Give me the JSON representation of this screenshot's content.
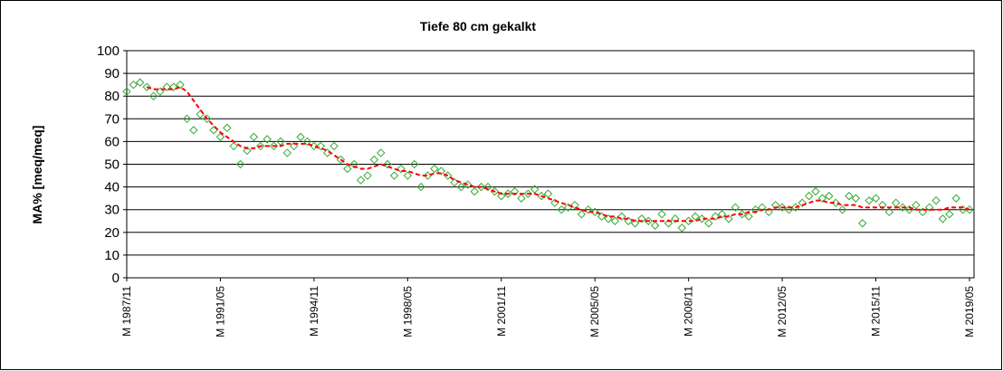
{
  "chart_data": {
    "type": "scatter-line",
    "title": "Tiefe   80 cm     gekalkt",
    "y_label": "MA% [meq/meq]",
    "categories": [
      "M 1987/11",
      null,
      null,
      null,
      null,
      null,
      null,
      null,
      null,
      null,
      null,
      null,
      null,
      null,
      "M 1991/05",
      null,
      null,
      null,
      null,
      null,
      null,
      null,
      null,
      null,
      null,
      null,
      null,
      null,
      "M 1994/11",
      null,
      null,
      null,
      null,
      null,
      null,
      null,
      null,
      null,
      null,
      null,
      null,
      null,
      "M 1998/05",
      null,
      null,
      null,
      null,
      null,
      null,
      null,
      null,
      null,
      null,
      null,
      null,
      null,
      "M 2001/11",
      null,
      null,
      null,
      null,
      null,
      null,
      null,
      null,
      null,
      null,
      null,
      null,
      null,
      "M 2005/05",
      null,
      null,
      null,
      null,
      null,
      null,
      null,
      null,
      null,
      null,
      null,
      null,
      null,
      "M 2008/11",
      null,
      null,
      null,
      null,
      null,
      null,
      null,
      null,
      null,
      null,
      null,
      null,
      null,
      "M 2012/05",
      null,
      null,
      null,
      null,
      null,
      null,
      null,
      null,
      null,
      null,
      null,
      null,
      null,
      "M 2015/11",
      null,
      null,
      null,
      null,
      null,
      null,
      null,
      null,
      null,
      null,
      null,
      null,
      null,
      "M 2019/05"
    ],
    "series": [
      {
        "kind": "points",
        "color": "#33aa33",
        "values": [
          82,
          85,
          86,
          84,
          80,
          82,
          84,
          84,
          85,
          70,
          65,
          72,
          70,
          65,
          62,
          66,
          58,
          50,
          56,
          62,
          58,
          61,
          58,
          60,
          55,
          58,
          62,
          60,
          58,
          58,
          55,
          58,
          52,
          48,
          50,
          43,
          45,
          52,
          55,
          50,
          45,
          48,
          45,
          50,
          40,
          45,
          48,
          47,
          45,
          42,
          40,
          41,
          38,
          40,
          40,
          38,
          36,
          37,
          38,
          35,
          37,
          39,
          36,
          37,
          33,
          30,
          31,
          32,
          28,
          30,
          29,
          27,
          26,
          25,
          27,
          25,
          24,
          26,
          25,
          23,
          28,
          24,
          26,
          22,
          25,
          27,
          26,
          24,
          27,
          28,
          26,
          31,
          28,
          27,
          30,
          31,
          29,
          32,
          31,
          30,
          31,
          33,
          36,
          38,
          35,
          36,
          33,
          30,
          36,
          35,
          24,
          34,
          35,
          32,
          29,
          33,
          31,
          30,
          32,
          29,
          31,
          34,
          26,
          28,
          35,
          30,
          30
        ]
      },
      {
        "kind": "line",
        "color": "#ff0000",
        "values": [
          null,
          null,
          null,
          84,
          83,
          83,
          83,
          83,
          84,
          82,
          78,
          74,
          70,
          67,
          64,
          62,
          60,
          58,
          57,
          57,
          58,
          58,
          58,
          58,
          59,
          59,
          59,
          59,
          58,
          57,
          56,
          54,
          52,
          50,
          49,
          48,
          48,
          49,
          50,
          49,
          48,
          47,
          47,
          46,
          45,
          45,
          46,
          46,
          45,
          43,
          42,
          41,
          40,
          40,
          39,
          38,
          37,
          37,
          37,
          37,
          37,
          37,
          36,
          35,
          34,
          33,
          32,
          31,
          30,
          29,
          29,
          28,
          27,
          27,
          26,
          26,
          25,
          25,
          25,
          25,
          25,
          25,
          25,
          25,
          25,
          25,
          26,
          26,
          26,
          27,
          27,
          28,
          28,
          29,
          29,
          30,
          30,
          31,
          31,
          31,
          31,
          32,
          33,
          34,
          34,
          33,
          33,
          32,
          32,
          32,
          31,
          31,
          31,
          31,
          31,
          31,
          31,
          31,
          30,
          30,
          30,
          30,
          30,
          31,
          31,
          31,
          30
        ]
      }
    ],
    "ylim": [
      0,
      100
    ],
    "yticks": [
      0,
      10,
      20,
      30,
      40,
      50,
      60,
      70,
      80,
      90,
      100
    ],
    "grid": true
  }
}
